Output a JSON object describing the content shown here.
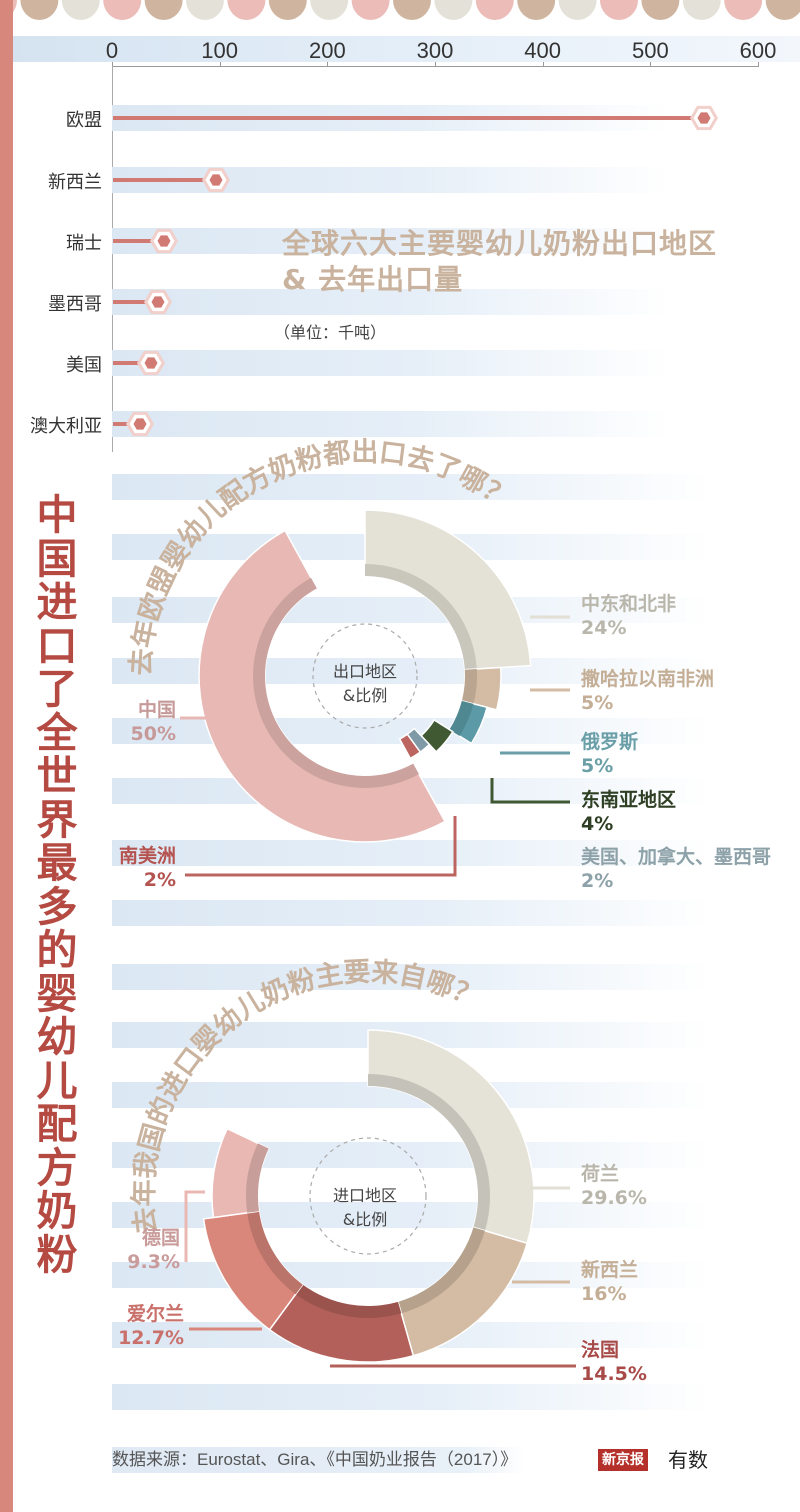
{
  "colors": {
    "left_bar": "#d8877c",
    "title_red": "#b44a42",
    "title_tan": "#c9b39e",
    "lollipop": "#d07a73",
    "band_blue": "#dbe7f3"
  },
  "scallop_colors": [
    "#ebbcb8",
    "#cfb59f",
    "#e4e2d8"
  ],
  "vertical_title": "中国进口了全世界最多的婴幼儿配方奶粉",
  "chart_data": [
    {
      "type": "bar",
      "subtype": "lollipop-horizontal",
      "title": "全球六大主要婴幼儿奶粉出口地区 & 去年出口量",
      "title_line1": "全球六大主要婴幼儿奶粉出口地区",
      "title_line2": "& 去年出口量",
      "unit": "（单位：千吨）",
      "xlabel": "",
      "ylabel": "",
      "xlim": [
        0,
        600
      ],
      "ticks": [
        "0",
        "100",
        "200",
        "300",
        "400",
        "500",
        "600"
      ],
      "categories": [
        "欧盟",
        "新西兰",
        "瑞士",
        "墨西哥",
        "美国",
        "澳大利亚"
      ],
      "values": [
        550,
        97,
        48,
        43,
        36,
        26
      ],
      "grid": false,
      "legend": null
    },
    {
      "type": "pie",
      "subtype": "donut",
      "title": "去年欧盟婴幼儿配方奶粉都出口去了哪？",
      "center_label_line1": "出口地区",
      "center_label_line2": "&比例",
      "slices": [
        {
          "name": "中东和北非",
          "value": 24,
          "label": "24%",
          "color": "#e4e1d6",
          "text_color": "#b9b6ab"
        },
        {
          "name": "撒哈拉以南非洲",
          "value": 5,
          "label": "5%",
          "color": "#d3bba4",
          "text_color": "#c4ae96"
        },
        {
          "name": "俄罗斯",
          "value": 5,
          "label": "5%",
          "color": "#5b9aa6",
          "text_color": "#6a9fa8"
        },
        {
          "name": "东南亚地区",
          "value": 4,
          "label": "4%",
          "color": "#405933",
          "text_color": "#2f3f24"
        },
        {
          "name": "美国、加拿大、墨西哥",
          "value": 2,
          "label": "2%",
          "color": "#7f9aa6",
          "text_color": "#8da1a9"
        },
        {
          "name": "南美洲",
          "value": 2,
          "label": "2%",
          "color": "#bb6460",
          "text_color": "#b4534f"
        },
        {
          "name": "中国",
          "value": 50,
          "label": "50%",
          "color": "#e7b8b4",
          "text_color": "#c79a9a"
        }
      ]
    },
    {
      "type": "pie",
      "subtype": "donut",
      "title": "去年我国的进口婴幼儿奶粉主要来自哪？",
      "center_label_line1": "进口地区",
      "center_label_line2": "&比例",
      "slices": [
        {
          "name": "荷兰",
          "value": 29.6,
          "label": "29.6%",
          "color": "#e5e2d7",
          "text_color": "#b9b6ab"
        },
        {
          "name": "新西兰",
          "value": 16,
          "label": "16%",
          "color": "#d4bba3",
          "text_color": "#c4ae96"
        },
        {
          "name": "法国",
          "value": 14.5,
          "label": "14.5%",
          "color": "#b4605a",
          "text_color": "#a84b48"
        },
        {
          "name": "爱尔兰",
          "value": 12.7,
          "label": "12.7%",
          "color": "#d9877b",
          "text_color": "#c9706b"
        },
        {
          "name": "德国",
          "value": 9.3,
          "label": "9.3%",
          "color": "#e9b8b3",
          "text_color": "#c99b9b"
        }
      ]
    }
  ],
  "footer": {
    "source": "数据来源：Eurostat、Gira、《中国奶业报告（2017）》",
    "logo_text": "新京报",
    "logo_text2": "有数"
  }
}
